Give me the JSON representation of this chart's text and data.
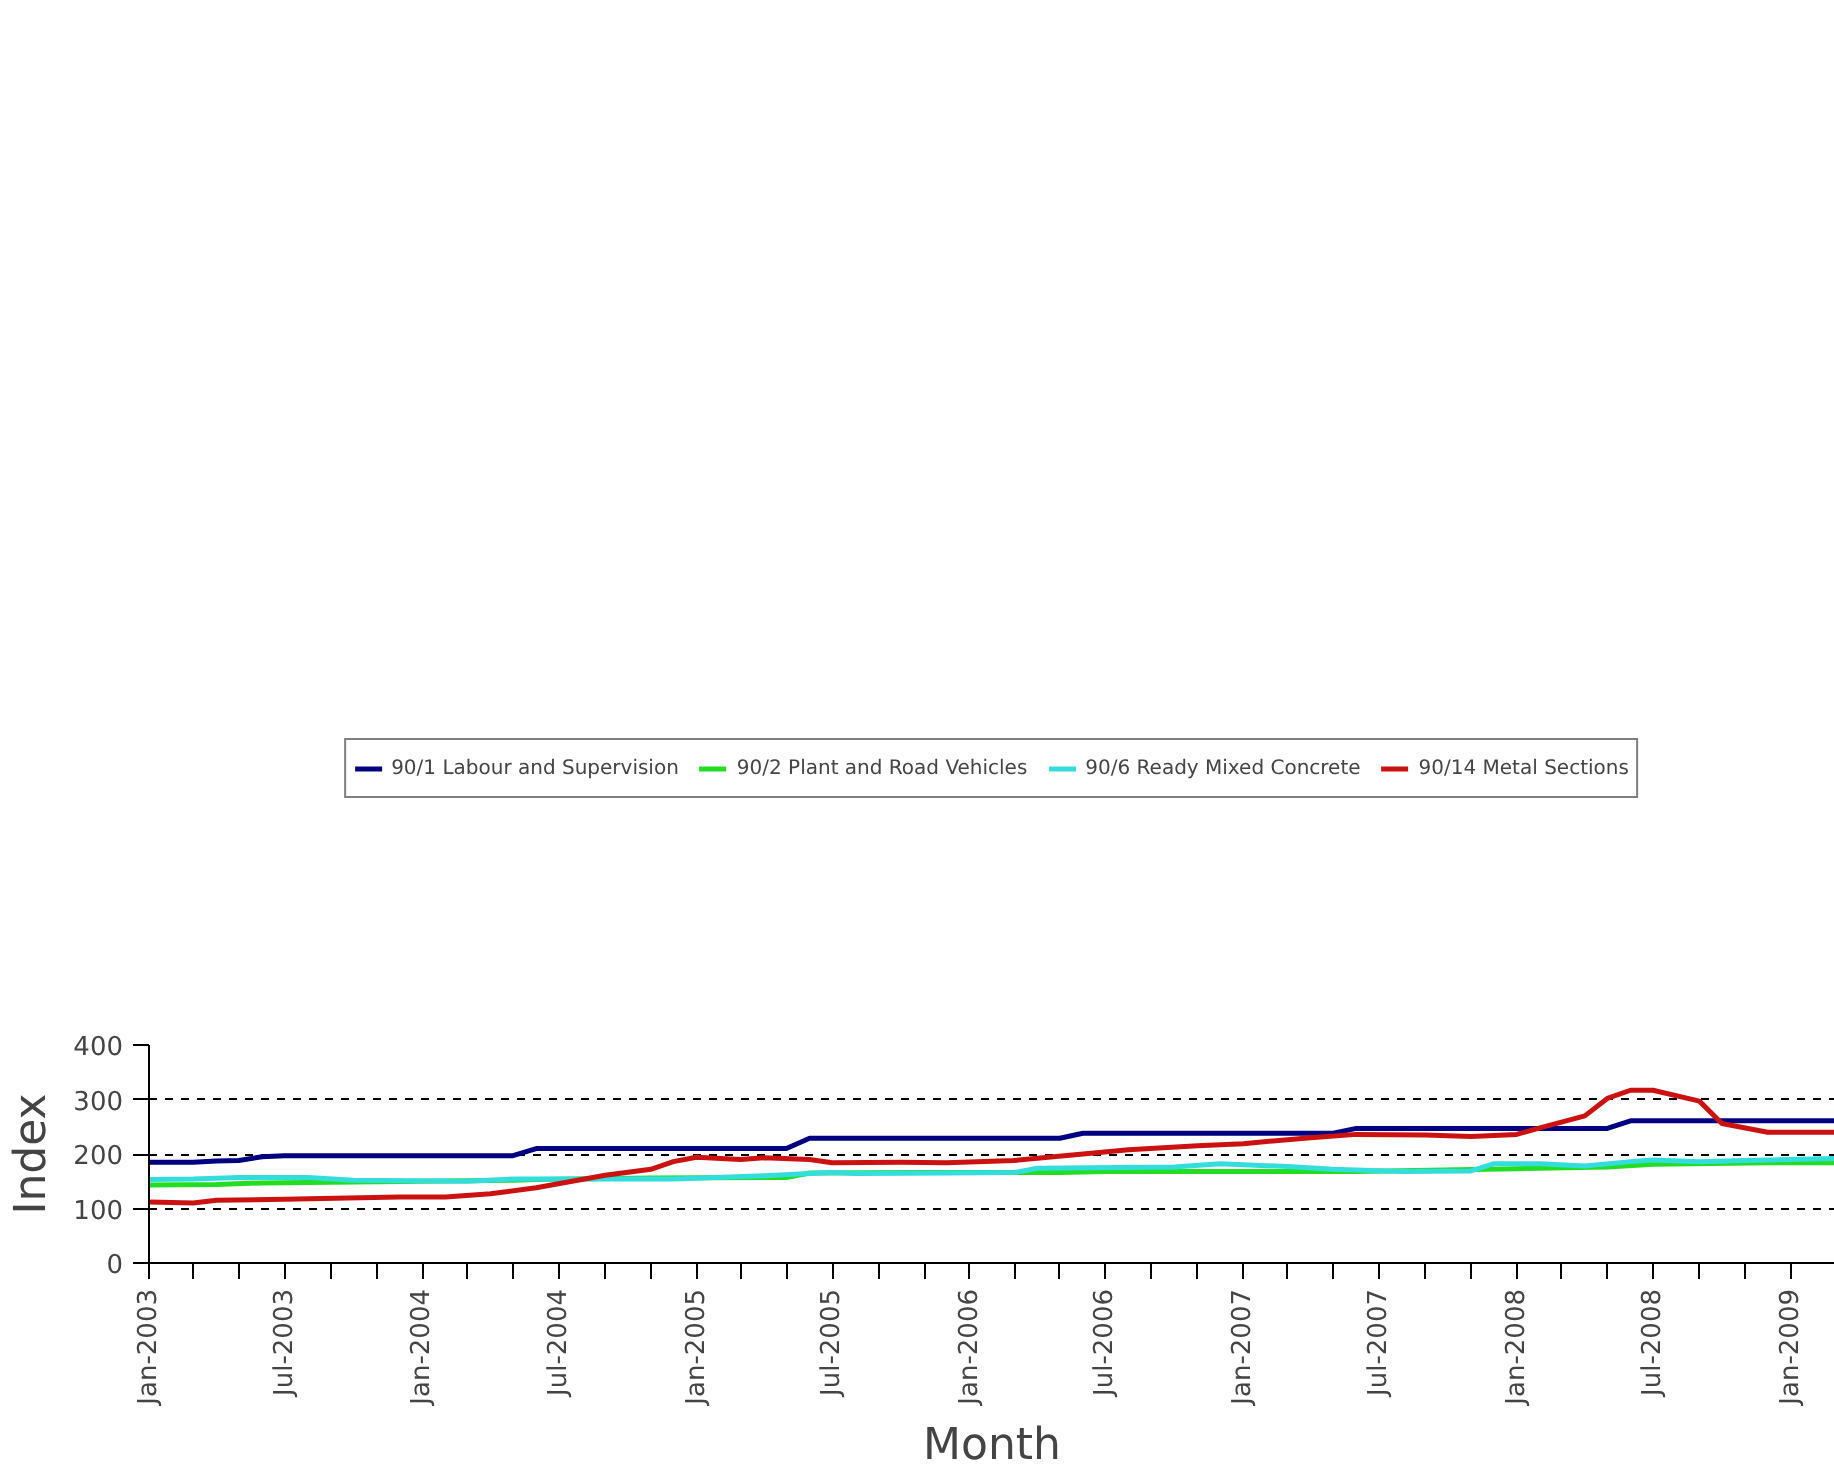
{
  "chart_data": {
    "type": "line",
    "xlabel": "Month",
    "ylabel": "Index",
    "xlim": [
      "2003-01",
      "2009-03"
    ],
    "ylim": [
      0,
      400
    ],
    "yticks": [
      0,
      100,
      200,
      300,
      400
    ],
    "xticks": [
      {
        "value": "2003-01",
        "label": "Jan-2003"
      },
      {
        "value": "2003-03",
        "label": null
      },
      {
        "value": "2003-05",
        "label": null
      },
      {
        "value": "2003-07",
        "label": "Jul-2003"
      },
      {
        "value": "2003-09",
        "label": null
      },
      {
        "value": "2003-11",
        "label": null
      },
      {
        "value": "2004-01",
        "label": "Jan-2004"
      },
      {
        "value": "2004-03",
        "label": null
      },
      {
        "value": "2004-05",
        "label": null
      },
      {
        "value": "2004-07",
        "label": "Jul-2004"
      },
      {
        "value": "2004-09",
        "label": null
      },
      {
        "value": "2004-11",
        "label": null
      },
      {
        "value": "2005-01",
        "label": "Jan-2005"
      },
      {
        "value": "2005-03",
        "label": null
      },
      {
        "value": "2005-05",
        "label": null
      },
      {
        "value": "2005-07",
        "label": "Jul-2005"
      },
      {
        "value": "2005-09",
        "label": null
      },
      {
        "value": "2005-11",
        "label": null
      },
      {
        "value": "2006-01",
        "label": "Jan-2006"
      },
      {
        "value": "2006-03",
        "label": null
      },
      {
        "value": "2006-05",
        "label": null
      },
      {
        "value": "2006-07",
        "label": "Jul-2006"
      },
      {
        "value": "2006-09",
        "label": null
      },
      {
        "value": "2006-11",
        "label": null
      },
      {
        "value": "2007-01",
        "label": "Jan-2007"
      },
      {
        "value": "2007-03",
        "label": null
      },
      {
        "value": "2007-05",
        "label": null
      },
      {
        "value": "2007-07",
        "label": "Jul-2007"
      },
      {
        "value": "2007-09",
        "label": null
      },
      {
        "value": "2007-11",
        "label": null
      },
      {
        "value": "2008-01",
        "label": "Jan-2008"
      },
      {
        "value": "2008-03",
        "label": null
      },
      {
        "value": "2008-05",
        "label": null
      },
      {
        "value": "2008-07",
        "label": "Jul-2008"
      },
      {
        "value": "2008-09",
        "label": null
      },
      {
        "value": "2008-11",
        "label": null
      },
      {
        "value": "2009-01",
        "label": "Jan-2009"
      }
    ],
    "grid": "y",
    "legend": "top",
    "marker": "none",
    "line_style": "solid",
    "series": [
      {
        "name": "90/1 Labour and Supervision",
        "color": "#000080",
        "x": [
          "2003-01",
          "2003-03",
          "2003-04",
          "2003-05",
          "2003-06",
          "2003-07",
          "2004-05",
          "2004-06",
          "2005-05",
          "2005-06",
          "2006-05",
          "2006-06",
          "2007-05",
          "2007-06",
          "2008-05",
          "2008-06",
          "2009-03"
        ],
        "values": [
          185,
          185,
          187,
          188,
          195,
          197,
          197,
          210,
          210,
          229,
          229,
          238,
          238,
          247,
          247,
          261,
          261
        ]
      },
      {
        "name": "90/2 Plant and Road Vehicles",
        "color": "#22dd22",
        "x": [
          "2003-01",
          "2003-04",
          "2003-06",
          "2003-11",
          "2004-05",
          "2004-06",
          "2004-11",
          "2005-05",
          "2005-06",
          "2005-11",
          "2006-05",
          "2006-07",
          "2007-06",
          "2008-01",
          "2008-05",
          "2008-07",
          "2008-12",
          "2009-03"
        ],
        "values": [
          143,
          144,
          147,
          149,
          152,
          153,
          156,
          157,
          165,
          166,
          166,
          168,
          168,
          173,
          176,
          181,
          184,
          184
        ]
      },
      {
        "name": "90/6 Ready Mixed Concrete",
        "color": "#33dddd",
        "x": [
          "2003-01",
          "2003-03",
          "2003-05",
          "2003-08",
          "2003-10",
          "2004-03",
          "2004-05",
          "2004-12",
          "2005-04",
          "2005-07",
          "2005-08",
          "2005-12",
          "2006-03",
          "2006-04",
          "2006-10",
          "2006-12",
          "2007-03",
          "2007-05",
          "2007-08",
          "2007-11",
          "2007-12",
          "2008-02",
          "2008-04",
          "2008-06",
          "2008-07",
          "2008-09",
          "2008-11",
          "2009-03"
        ],
        "values": [
          153,
          154,
          157,
          157,
          152,
          150,
          154,
          154,
          160,
          166,
          164,
          165,
          166,
          174,
          176,
          182,
          177,
          172,
          168,
          169,
          182,
          182,
          178,
          186,
          189,
          186,
          188,
          192
        ]
      },
      {
        "name": "90/14 Metal Sections",
        "color": "#cc1111",
        "x": [
          "2003-01",
          "2003-03",
          "2003-04",
          "2003-07",
          "2003-12",
          "2004-02",
          "2004-04",
          "2004-06",
          "2004-09",
          "2004-11",
          "2004-12",
          "2005-01",
          "2005-03",
          "2005-04",
          "2005-06",
          "2005-07",
          "2005-10",
          "2005-12",
          "2006-03",
          "2006-06",
          "2006-08",
          "2006-11",
          "2007-01",
          "2007-04",
          "2007-06",
          "2007-09",
          "2007-11",
          "2008-01",
          "2008-02",
          "2008-04",
          "2008-05",
          "2008-06",
          "2008-07",
          "2008-09",
          "2008-10",
          "2008-12",
          "2009-03"
        ],
        "values": [
          112,
          110,
          115,
          117,
          121,
          121,
          127,
          138,
          161,
          172,
          186,
          194,
          190,
          193,
          190,
          184,
          185,
          184,
          188,
          200,
          208,
          215,
          219,
          230,
          236,
          235,
          232,
          236,
          248,
          270,
          302,
          317,
          317,
          297,
          256,
          240,
          240
        ]
      }
    ]
  }
}
